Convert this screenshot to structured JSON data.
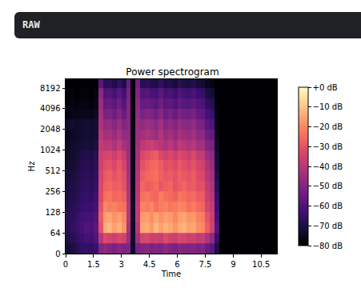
{
  "header": {
    "label": "RAW"
  },
  "chart_data": {
    "type": "heatmap",
    "title": "Power spectrogram",
    "x_label": "Time",
    "y_label": "Hz",
    "x": [
      0.125,
      0.375,
      0.625,
      0.875,
      1.125,
      1.375,
      1.625,
      1.875,
      2.125,
      2.375,
      2.625,
      2.875,
      3.125,
      3.375,
      3.625,
      3.875,
      4.125,
      4.375,
      4.625,
      4.875,
      5.125,
      5.375,
      5.625,
      5.875,
      6.125,
      6.375,
      6.625,
      6.875,
      7.125,
      7.375,
      7.625,
      7.875,
      8.125,
      8.375,
      8.625,
      8.875,
      9.125,
      9.375,
      9.625,
      9.875,
      10.125,
      10.375,
      10.625,
      10.875,
      11.125
    ],
    "y": [
      16,
      48,
      76,
      108,
      152,
      215,
      304,
      431,
      609,
      861,
      1218,
      1722,
      2435,
      3444,
      4871,
      6889,
      9742
    ],
    "z": [
      [
        -72,
        -70,
        -68,
        -66,
        -65,
        -66,
        -64,
        -50,
        -48,
        -50,
        -52,
        -49,
        -51,
        -50,
        -74,
        -52,
        -50,
        -49,
        -52,
        -50,
        -51,
        -48,
        -50,
        -52,
        -49,
        -50,
        -51,
        -50,
        -52,
        -50,
        -55,
        -58,
        -70,
        -80,
        -80,
        -80,
        -80,
        -80,
        -80,
        -80,
        -80,
        -80,
        -80,
        -80,
        -80
      ],
      [
        -70,
        -68,
        -66,
        -64,
        -62,
        -63,
        -60,
        -40,
        -32,
        -34,
        -36,
        -33,
        -35,
        -45,
        -74,
        -44,
        -34,
        -33,
        -36,
        -35,
        -37,
        -32,
        -35,
        -36,
        -33,
        -34,
        -36,
        -35,
        -38,
        -37,
        -42,
        -48,
        -65,
        -80,
        -80,
        -80,
        -80,
        -80,
        -80,
        -80,
        -80,
        -80,
        -80,
        -80,
        -80
      ],
      [
        -68,
        -66,
        -64,
        -62,
        -60,
        -61,
        -58,
        -30,
        -14,
        -12,
        -16,
        -13,
        -18,
        -42,
        -75,
        -40,
        -15,
        -14,
        -17,
        -12,
        -16,
        -13,
        -15,
        -18,
        -14,
        -13,
        -16,
        -15,
        -19,
        -20,
        -28,
        -35,
        -60,
        -80,
        -80,
        -80,
        -80,
        -80,
        -80,
        -80,
        -80,
        -80,
        -80,
        -80,
        -80
      ],
      [
        -68,
        -67,
        -65,
        -63,
        -62,
        -62,
        -60,
        -28,
        -16,
        -15,
        -18,
        -16,
        -20,
        -40,
        -74,
        -38,
        -17,
        -16,
        -19,
        -15,
        -18,
        -16,
        -17,
        -20,
        -16,
        -15,
        -18,
        -17,
        -21,
        -22,
        -30,
        -36,
        -62,
        -80,
        -80,
        -80,
        -80,
        -80,
        -80,
        -80,
        -80,
        -80,
        -80,
        -80,
        -80
      ],
      [
        -69,
        -68,
        -67,
        -65,
        -64,
        -64,
        -62,
        -30,
        -20,
        -22,
        -21,
        -23,
        -24,
        -40,
        -74,
        -38,
        -21,
        -22,
        -20,
        -24,
        -22,
        -21,
        -23,
        -22,
        -20,
        -21,
        -24,
        -22,
        -25,
        -26,
        -34,
        -38,
        -64,
        -80,
        -80,
        -80,
        -80,
        -80,
        -80,
        -80,
        -80,
        -80,
        -80,
        -80,
        -80
      ],
      [
        -70,
        -69,
        -68,
        -66,
        -65,
        -66,
        -63,
        -32,
        -24,
        -23,
        -26,
        -25,
        -27,
        -41,
        -75,
        -39,
        -24,
        -23,
        -25,
        -26,
        -22,
        -24,
        -25,
        -27,
        -23,
        -24,
        -26,
        -25,
        -28,
        -28,
        -36,
        -40,
        -66,
        -80,
        -80,
        -80,
        -80,
        -80,
        -80,
        -80,
        -80,
        -80,
        -80,
        -80,
        -80
      ],
      [
        -71,
        -70,
        -69,
        -67,
        -66,
        -67,
        -65,
        -33,
        -27,
        -26,
        -28,
        -27,
        -30,
        -42,
        -76,
        -40,
        -26,
        -28,
        -27,
        -25,
        -29,
        -27,
        -26,
        -30,
        -28,
        -26,
        -29,
        -28,
        -31,
        -30,
        -38,
        -42,
        -68,
        -80,
        -80,
        -80,
        -80,
        -80,
        -80,
        -80,
        -80,
        -80,
        -80,
        -80,
        -80
      ],
      [
        -72,
        -71,
        -70,
        -68,
        -67,
        -68,
        -66,
        -34,
        -29,
        -27,
        -30,
        -28,
        -31,
        -43,
        -76,
        -41,
        -28,
        -26,
        -25,
        -24,
        -27,
        -29,
        -28,
        -30,
        -27,
        -29,
        -30,
        -28,
        -32,
        -33,
        -40,
        -44,
        -70,
        -80,
        -80,
        -80,
        -80,
        -80,
        -80,
        -80,
        -80,
        -80,
        -80,
        -80,
        -80
      ],
      [
        -73,
        -72,
        -71,
        -69,
        -68,
        -69,
        -67,
        -35,
        -31,
        -30,
        -33,
        -29,
        -34,
        -44,
        -77,
        -42,
        -30,
        -28,
        -26,
        -25,
        -28,
        -31,
        -30,
        -32,
        -29,
        -31,
        -33,
        -30,
        -34,
        -35,
        -42,
        -46,
        -72,
        -80,
        -80,
        -80,
        -80,
        -80,
        -80,
        -80,
        -80,
        -80,
        -80,
        -80,
        -80
      ],
      [
        -74,
        -73,
        -72,
        -70,
        -69,
        -70,
        -68,
        -36,
        -34,
        -33,
        -36,
        -32,
        -37,
        -45,
        -77,
        -43,
        -33,
        -31,
        -29,
        -28,
        -32,
        -35,
        -33,
        -36,
        -32,
        -34,
        -36,
        -33,
        -38,
        -38,
        -45,
        -48,
        -73,
        -80,
        -80,
        -80,
        -80,
        -80,
        -80,
        -80,
        -80,
        -80,
        -80,
        -80,
        -80
      ],
      [
        -75,
        -74,
        -73,
        -72,
        -71,
        -72,
        -70,
        -38,
        -40,
        -39,
        -42,
        -38,
        -43,
        -46,
        -78,
        -44,
        -39,
        -37,
        -36,
        -38,
        -40,
        -42,
        -39,
        -43,
        -38,
        -40,
        -42,
        -40,
        -44,
        -44,
        -50,
        -52,
        -75,
        -80,
        -80,
        -80,
        -80,
        -80,
        -80,
        -80,
        -80,
        -80,
        -80,
        -80,
        -80
      ],
      [
        -76,
        -75,
        -74,
        -73,
        -72,
        -73,
        -72,
        -40,
        -44,
        -43,
        -46,
        -42,
        -47,
        -47,
        -78,
        -45,
        -44,
        -42,
        -43,
        -45,
        -41,
        -46,
        -44,
        -47,
        -43,
        -45,
        -46,
        -44,
        -48,
        -48,
        -54,
        -56,
        -76,
        -80,
        -80,
        -80,
        -80,
        -80,
        -80,
        -80,
        -80,
        -80,
        -80,
        -80,
        -80
      ],
      [
        -74,
        -73,
        -74,
        -73,
        -72,
        -73,
        -72,
        -42,
        -47,
        -46,
        -49,
        -45,
        -50,
        -48,
        -78,
        -46,
        -47,
        -45,
        -46,
        -48,
        -44,
        -49,
        -47,
        -50,
        -46,
        -48,
        -49,
        -47,
        -51,
        -52,
        -58,
        -60,
        -77,
        -80,
        -80,
        -80,
        -80,
        -80,
        -80,
        -80,
        -80,
        -80,
        -80,
        -80,
        -80
      ],
      [
        -78,
        -77,
        -77,
        -76,
        -76,
        -77,
        -75,
        -44,
        -52,
        -51,
        -54,
        -50,
        -55,
        -49,
        -79,
        -47,
        -52,
        -50,
        -51,
        -53,
        -49,
        -54,
        -52,
        -55,
        -51,
        -53,
        -54,
        -52,
        -56,
        -57,
        -62,
        -64,
        -78,
        -80,
        -80,
        -80,
        -80,
        -80,
        -80,
        -80,
        -80,
        -80,
        -80,
        -80,
        -80
      ],
      [
        -79,
        -78,
        -79,
        -78,
        -78,
        -79,
        -77,
        -45,
        -56,
        -55,
        -58,
        -54,
        -59,
        -50,
        -79,
        -48,
        -56,
        -55,
        -56,
        -58,
        -54,
        -58,
        -57,
        -60,
        -56,
        -58,
        -59,
        -57,
        -60,
        -61,
        -66,
        -68,
        -79,
        -80,
        -80,
        -80,
        -80,
        -80,
        -80,
        -80,
        -80,
        -80,
        -80,
        -80,
        -80
      ],
      [
        -80,
        -79,
        -80,
        -79,
        -79,
        -80,
        -78,
        -48,
        -60,
        -59,
        -62,
        -58,
        -63,
        -52,
        -80,
        -50,
        -60,
        -59,
        -61,
        -62,
        -58,
        -62,
        -61,
        -64,
        -60,
        -62,
        -63,
        -61,
        -64,
        -65,
        -70,
        -72,
        -80,
        -80,
        -80,
        -80,
        -80,
        -80,
        -80,
        -80,
        -80,
        -80,
        -80,
        -80,
        -80
      ],
      [
        -80,
        -80,
        -80,
        -80,
        -80,
        -80,
        -80,
        -58,
        -68,
        -67,
        -70,
        -66,
        -70,
        -55,
        -80,
        -53,
        -68,
        -67,
        -69,
        -70,
        -66,
        -70,
        -69,
        -72,
        -68,
        -70,
        -71,
        -69,
        -72,
        -73,
        -76,
        -78,
        -80,
        -80,
        -80,
        -80,
        -80,
        -80,
        -80,
        -80,
        -80,
        -80,
        -80,
        -80,
        -80
      ]
    ],
    "xlim": [
      0,
      11.35
    ],
    "ylim": [
      0,
      11025
    ],
    "xticks": [
      0,
      1.5,
      3,
      4.5,
      6,
      7.5,
      9,
      10.5
    ],
    "yticks": [
      0,
      64,
      128,
      256,
      512,
      1024,
      2048,
      4096,
      8192
    ],
    "log": "y",
    "color": "magma",
    "zlim": [
      -80,
      0
    ],
    "zticks": [
      {
        "value": 0,
        "label": "+0 dB"
      },
      {
        "value": -10,
        "label": "−10 dB"
      },
      {
        "value": -20,
        "label": "−20 dB"
      },
      {
        "value": -30,
        "label": "−30 dB"
      },
      {
        "value": -40,
        "label": "−40 dB"
      },
      {
        "value": -50,
        "label": "−50 dB"
      },
      {
        "value": -60,
        "label": "−60 dB"
      },
      {
        "value": -70,
        "label": "−70 dB"
      },
      {
        "value": -80,
        "label": "−80 dB"
      }
    ]
  }
}
